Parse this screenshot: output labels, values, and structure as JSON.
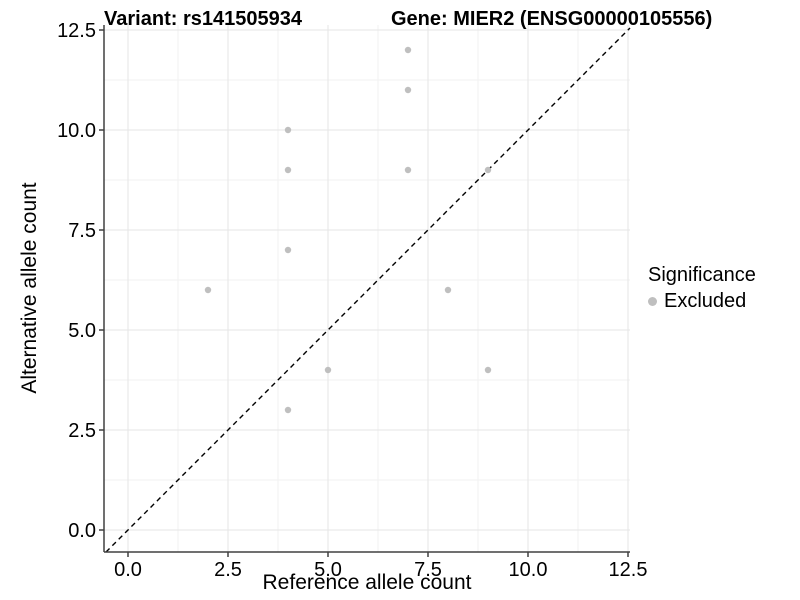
{
  "header": {
    "title_left": "Variant: rs141505934",
    "title_right": "Gene: MIER2 (ENSG00000105556)"
  },
  "chart_data": {
    "type": "scatter",
    "title": "Variant: rs141505934 — Gene: MIER2 (ENSG00000105556)",
    "xlabel": "Reference allele count",
    "ylabel": "Alternative allele count",
    "xlim": [
      -0.6,
      12.55
    ],
    "ylim": [
      -0.55,
      12.625
    ],
    "tick_values": [
      0,
      2.5,
      5,
      7.5,
      10,
      12.5
    ],
    "x_tick_labels": [
      "0.0",
      "2.5",
      "5.0",
      "7.5",
      "10.0",
      "12.5"
    ],
    "y_tick_labels": [
      "0.0",
      "2.5",
      "5.0",
      "7.5",
      "10.0",
      "12.5"
    ],
    "minor_tick_values": [
      1.25,
      3.75,
      6.25,
      8.75,
      11.25
    ],
    "grid": "major and minor gridlines, light gray, on white background",
    "identity_line": {
      "slope": 1,
      "intercept": 0,
      "style": "dashed",
      "color": "#000000"
    },
    "series": [
      {
        "name": "Excluded",
        "color": "#bfbfbf",
        "points": [
          [
            2,
            6
          ],
          [
            4,
            3
          ],
          [
            4,
            7
          ],
          [
            4,
            9
          ],
          [
            4,
            10
          ],
          [
            5,
            4
          ],
          [
            7,
            9
          ],
          [
            7,
            11
          ],
          [
            7,
            12
          ],
          [
            8,
            6
          ],
          [
            9,
            4
          ],
          [
            9,
            9
          ]
        ]
      }
    ],
    "legend": {
      "title": "Significance",
      "position": "right",
      "items": [
        {
          "label": "Excluded",
          "color": "#bfbfbf"
        }
      ]
    }
  },
  "colors": {
    "background": "#ffffff",
    "grid_major": "#e5e5e5",
    "grid_minor": "#f2f2f2",
    "axis_line": "#404040",
    "tick_mark": "#404040",
    "text": "#000000",
    "point": "#bfbfbf"
  }
}
